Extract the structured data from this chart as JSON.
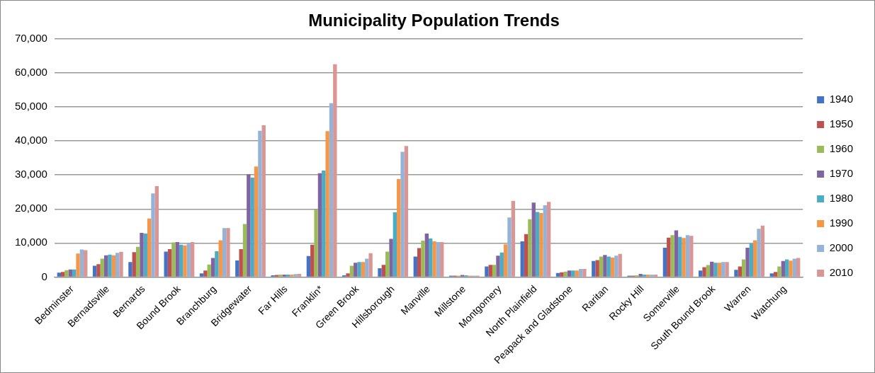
{
  "chart_data": {
    "type": "bar",
    "title": "Municipality Population Trends",
    "categories": [
      "Bedminster",
      "Bernadsville",
      "Bernards",
      "Bound Brook",
      "Branchburg",
      "Bridgewater",
      "Far Hills",
      "Franklin*",
      "Green Brook",
      "Hillsborough",
      "Manville",
      "Millstone",
      "Montgomery",
      "North Plainfield",
      "Peapack and Gladstone",
      "Raritan",
      "Rocky Hill",
      "Somerville",
      "South Bound Brook",
      "Warren",
      "Watchung"
    ],
    "series": [
      {
        "name": "1940",
        "color": "#4472c4",
        "values": [
          1300,
          3300,
          4400,
          7500,
          1100,
          4900,
          500,
          6200,
          500,
          2600,
          6000,
          400,
          3100,
          10500,
          1200,
          4700,
          400,
          8600,
          1900,
          2100,
          1100
        ]
      },
      {
        "name": "1950",
        "color": "#c0504d",
        "values": [
          1500,
          3800,
          7300,
          8200,
          1900,
          8200,
          600,
          9500,
          1100,
          3600,
          8500,
          400,
          3600,
          12600,
          1400,
          5000,
          400,
          11600,
          2900,
          3100,
          1500
        ]
      },
      {
        "name": "1960",
        "color": "#9bbb59",
        "values": [
          2000,
          5400,
          8900,
          10200,
          3700,
          15600,
          700,
          19900,
          3300,
          7500,
          10700,
          400,
          3600,
          17000,
          1600,
          6000,
          500,
          12300,
          3500,
          5200,
          3100
        ]
      },
      {
        "name": "1970",
        "color": "#8064a2",
        "values": [
          2200,
          6400,
          13000,
          10300,
          5600,
          30200,
          700,
          30500,
          4200,
          11200,
          12800,
          600,
          6300,
          21900,
          1900,
          6500,
          900,
          13700,
          4500,
          8600,
          4700
        ]
      },
      {
        "name": "1980",
        "color": "#4bacc6",
        "values": [
          2200,
          6600,
          12800,
          9500,
          7600,
          29200,
          700,
          31300,
          4400,
          19000,
          11300,
          500,
          7200,
          19100,
          1900,
          6000,
          700,
          11800,
          4200,
          9800,
          5200
        ]
      },
      {
        "name": "1990",
        "color": "#f79646",
        "values": [
          6900,
          6400,
          17200,
          9300,
          10800,
          32500,
          700,
          42900,
          4400,
          28800,
          10500,
          400,
          9600,
          18800,
          1900,
          5700,
          700,
          11500,
          4200,
          10800,
          4800
        ]
      },
      {
        "name": "2000",
        "color": "#95b3d7",
        "values": [
          8100,
          7100,
          24600,
          9800,
          14400,
          43000,
          850,
          51100,
          5400,
          36800,
          10300,
          400,
          17500,
          21100,
          2400,
          6300,
          700,
          12300,
          4400,
          14200,
          5400
        ]
      },
      {
        "name": "2010",
        "color": "#d99694",
        "values": [
          7900,
          7400,
          26700,
          10300,
          14400,
          44600,
          900,
          62500,
          7000,
          38500,
          10300,
          400,
          22400,
          22100,
          2400,
          6800,
          700,
          12100,
          4400,
          15100,
          5600
        ]
      }
    ],
    "ylim": [
      0,
      70000
    ],
    "yticks": [
      0,
      {
        "value": 10000,
        "label": "10,000"
      },
      {
        "value": 20000,
        "label": "20,000"
      },
      {
        "value": 30000,
        "label": "30,000"
      },
      {
        "value": 40000,
        "label": "40,000"
      },
      {
        "value": 50000,
        "label": "50,000"
      },
      {
        "value": 60000,
        "label": "60,000"
      },
      {
        "value": 70000,
        "label": "70,000"
      }
    ],
    "grid": "y",
    "legend": "right"
  }
}
